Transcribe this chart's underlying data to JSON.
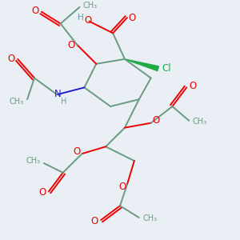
{
  "bg_color": "#eaeff5",
  "bond_color": "#6a9a80",
  "o_color": "#ee0000",
  "n_color": "#2222cc",
  "cl_color": "#22aa44",
  "h_color": "#6699aa",
  "figsize": [
    3.0,
    3.0
  ],
  "dpi": 100,
  "xlim": [
    0,
    10
  ],
  "ylim": [
    0,
    10
  ]
}
